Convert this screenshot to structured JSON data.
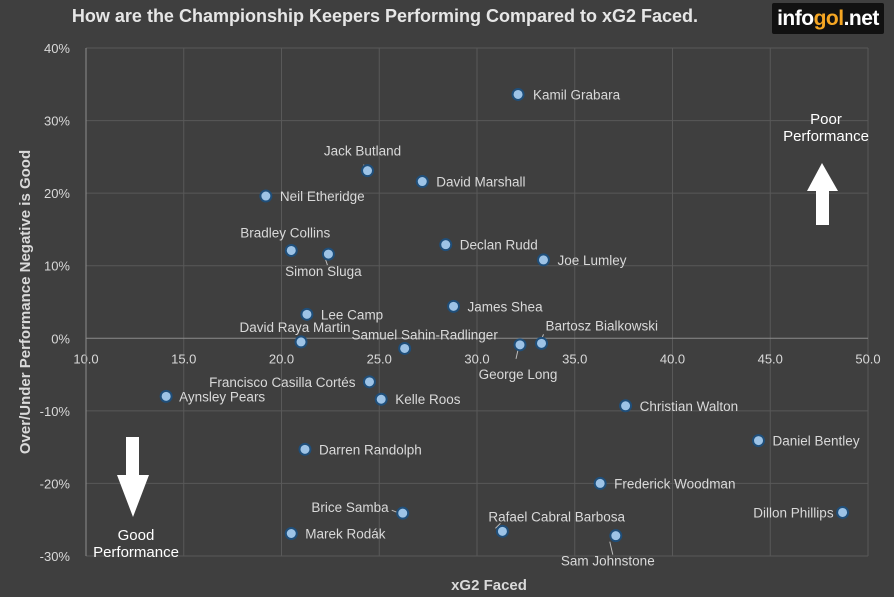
{
  "title": "How are the Championship Keepers Performing Compared to xG2 Faced.",
  "brand": {
    "part1": "info",
    "part2": "gol",
    "part3": ".net"
  },
  "annotations": {
    "poor": [
      "Poor",
      "Performance"
    ],
    "good": [
      "Good",
      "Performance"
    ]
  },
  "colors": {
    "background": "#3f3f3f",
    "point_fill": "#9dc3e6",
    "point_stroke": "#1f4e79",
    "grid": "#595959",
    "text": "#d9d9d9"
  },
  "chart_data": {
    "type": "scatter",
    "title": "How are the Championship Keepers Performing Compared to xG2 Faced.",
    "xlabel": "xG2 Faced",
    "ylabel": "Over/Under Performance Negative is Good",
    "xlim": [
      10,
      50
    ],
    "ylim": [
      -30,
      40
    ],
    "xticks": [
      "10.0",
      "15.0",
      "20.0",
      "25.0",
      "30.0",
      "35.0",
      "40.0",
      "45.0",
      "50.0"
    ],
    "yticks": [
      "-30%",
      "-20%",
      "-10%",
      "0%",
      "10%",
      "20%",
      "30%",
      "40%"
    ],
    "grid": true,
    "points": [
      {
        "label": "Kamil Grabara",
        "x": 32.1,
        "y": 33.6
      },
      {
        "label": "Jack Butland",
        "x": 24.4,
        "y": 23.1
      },
      {
        "label": "David Marshall",
        "x": 27.2,
        "y": 21.6
      },
      {
        "label": "Neil Etheridge",
        "x": 19.2,
        "y": 19.6
      },
      {
        "label": "Bradley Collins",
        "x": 20.5,
        "y": 12.1
      },
      {
        "label": "Simon Sluga",
        "x": 22.4,
        "y": 11.6
      },
      {
        "label": "Declan Rudd",
        "x": 28.4,
        "y": 12.9
      },
      {
        "label": "Joe Lumley",
        "x": 33.4,
        "y": 10.8
      },
      {
        "label": "Lee Camp",
        "x": 21.3,
        "y": 3.3
      },
      {
        "label": "James Shea",
        "x": 28.8,
        "y": 4.4
      },
      {
        "label": "David Raya Martin",
        "x": 21.0,
        "y": -0.5
      },
      {
        "label": "Samuel Sahin-Radlinger",
        "x": 26.3,
        "y": -1.4
      },
      {
        "label": "Bartosz Bialkowski",
        "x": 33.3,
        "y": -0.7
      },
      {
        "label": "George Long",
        "x": 32.2,
        "y": -0.9
      },
      {
        "label": "Francisco Casilla Cortés",
        "x": 24.5,
        "y": -6.0
      },
      {
        "label": "Aynsley Pears",
        "x": 14.1,
        "y": -8.0
      },
      {
        "label": "Kelle Roos",
        "x": 25.1,
        "y": -8.4
      },
      {
        "label": "Christian Walton",
        "x": 37.6,
        "y": -9.3
      },
      {
        "label": "Daniel Bentley",
        "x": 44.4,
        "y": -14.1
      },
      {
        "label": "Darren Randolph",
        "x": 21.2,
        "y": -15.3
      },
      {
        "label": "Frederick Woodman",
        "x": 36.3,
        "y": -20.0
      },
      {
        "label": "Dillon Phillips",
        "x": 48.7,
        "y": -24.0
      },
      {
        "label": "Brice Samba",
        "x": 26.2,
        "y": -24.1
      },
      {
        "label": "Rafael Cabral Barbosa",
        "x": 31.3,
        "y": -26.6
      },
      {
        "label": "Marek Rodák",
        "x": 20.5,
        "y": -26.9
      },
      {
        "label": "Sam Johnstone",
        "x": 37.1,
        "y": -27.2
      }
    ]
  }
}
